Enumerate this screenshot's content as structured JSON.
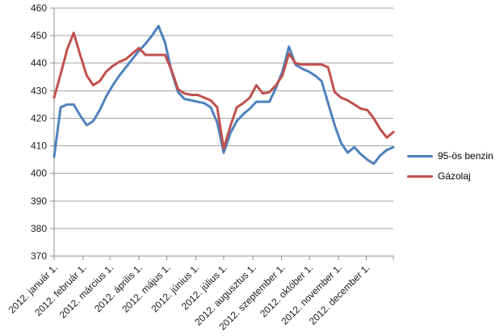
{
  "chart_data": {
    "type": "line",
    "title": "",
    "xlabel": "",
    "ylabel": "",
    "ylim": [
      370,
      460
    ],
    "y_ticks": [
      370,
      380,
      390,
      400,
      410,
      420,
      430,
      440,
      450,
      460
    ],
    "grid": "horizontal",
    "legend_position": "right",
    "x_tick_labels": [
      "2012. január 1.",
      "2012. február 1.",
      "2012. március 1.",
      "2012. április 1.",
      "2012. május 1.",
      "2012. június 1.",
      "2012. július 1.",
      "2012. augusztus 1.",
      "2012. szeptember 1.",
      "2012. október 1.",
      "2012. november 1.",
      "2012. december 1."
    ],
    "x_tick_days": [
      0,
      31,
      60,
      91,
      121,
      152,
      182,
      213,
      244,
      274,
      305,
      335
    ],
    "x_total_days": 364,
    "point_interval_days": 7,
    "series": [
      {
        "name": "95-ös benzin",
        "color": "#4F81BD",
        "values": [
          406,
          424,
          425,
          425,
          421,
          417.5,
          419,
          423,
          428,
          432,
          435.5,
          438.5,
          441.5,
          444.5,
          447,
          450,
          453.5,
          447.5,
          437,
          429.5,
          427,
          426.5,
          426,
          425.5,
          424,
          418.5,
          407.5,
          414.5,
          419,
          421.5,
          423.5,
          426,
          426,
          426,
          431,
          437,
          446,
          439.5,
          438,
          437,
          435.5,
          433.5,
          425.5,
          417.5,
          411,
          407.5,
          409.5,
          407,
          405,
          403.5,
          406.5,
          408.5,
          409.5
        ]
      },
      {
        "name": "Gázolaj",
        "color": "#C0504D",
        "values": [
          427.5,
          436,
          445,
          451,
          443,
          435.5,
          432,
          433.5,
          437,
          439,
          440.5,
          441.5,
          443.5,
          445.5,
          443,
          443,
          443,
          443,
          437.5,
          430.5,
          429,
          428.5,
          428.5,
          427.5,
          426.5,
          424,
          409,
          417,
          424,
          425.5,
          427.5,
          432,
          429,
          429.5,
          432,
          435.5,
          443.5,
          440,
          439.5,
          439.5,
          439.5,
          439.5,
          438.5,
          429.5,
          427.5,
          426.5,
          425,
          423.5,
          423,
          420,
          416,
          413,
          415
        ]
      }
    ]
  },
  "legend": {
    "items": [
      {
        "label": "95-ös benzin",
        "color": "#4F81BD"
      },
      {
        "label": "Gázolaj",
        "color": "#C0504D"
      }
    ]
  },
  "colors": {
    "background": "#FFFFFF",
    "grid": "#A3A3A3",
    "axis": "#8C8C8C",
    "tick_text": "#1A1A1A"
  }
}
